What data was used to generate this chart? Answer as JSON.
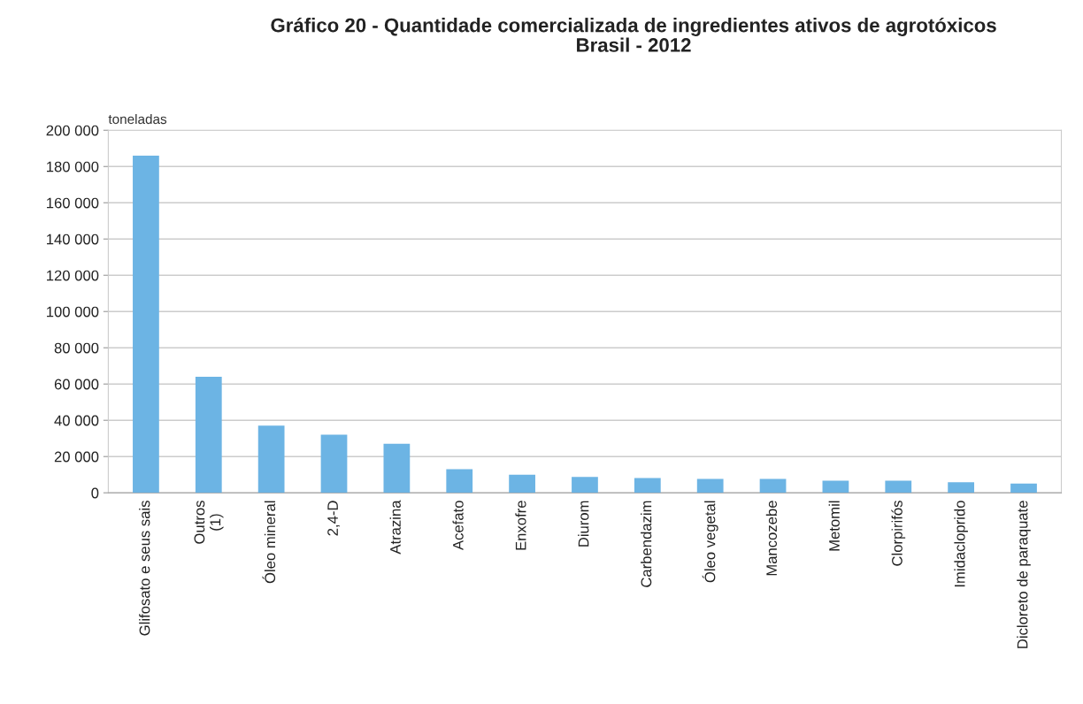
{
  "chart_data": {
    "type": "bar",
    "title": "Gráfico 20 - Quantidade comercializada de ingredientes ativos de agrotóxicos\nBrasil - 2012",
    "ylabel": "toneladas",
    "categories": [
      "Glifosato e seus sais",
      "Outros\n(1)",
      "Óleo mineral",
      "2,4-D",
      "Atrazina",
      "Acefato",
      "Enxofre",
      "Diurom",
      "Carbendazim",
      "Óleo vegetal",
      "Mancozebe",
      "Metomil",
      "Clorpirifós",
      "Imidacloprido",
      "Dicloreto de paraquate"
    ],
    "values": [
      186000,
      64000,
      37000,
      32000,
      27000,
      13000,
      10000,
      8800,
      8100,
      7600,
      7600,
      6700,
      6700,
      5800,
      5100
    ],
    "color": "#6cb4e4",
    "ylim": [
      0,
      200000
    ],
    "yticks": [
      0,
      {
        "value": 20000,
        "label": "20 000"
      },
      {
        "value": 40000,
        "label": "40 000"
      },
      {
        "value": 60000,
        "label": "60 000"
      },
      {
        "value": 80000,
        "label": "80 000"
      },
      {
        "value": 100000,
        "label": "100 000"
      },
      {
        "value": 120000,
        "label": "120 000"
      },
      {
        "value": 140000,
        "label": "140 000"
      },
      {
        "value": 160000,
        "label": "160 000"
      },
      {
        "value": 180000,
        "label": "180 000"
      },
      {
        "value": 200000,
        "label": "200 000"
      }
    ],
    "grid": "y"
  }
}
